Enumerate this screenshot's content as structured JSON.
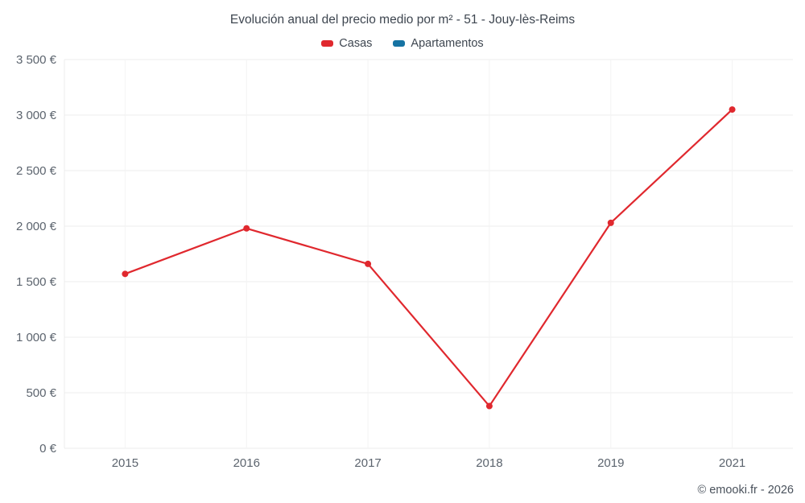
{
  "chart_data": {
    "type": "line",
    "title": "Evolución anual del precio medio por m² - 51 - Jouy-lès-Reims",
    "categories": [
      "2015",
      "2016",
      "2017",
      "2018",
      "2019",
      "2021"
    ],
    "series": [
      {
        "name": "Casas",
        "color": "#e0282e",
        "values": [
          1570,
          1980,
          1660,
          380,
          2030,
          3050
        ]
      },
      {
        "name": "Apartamentos",
        "color": "#1673a3",
        "values": []
      }
    ],
    "xlabel": "",
    "ylabel": "",
    "ylim": [
      0,
      3500
    ],
    "y_ticks": [
      0,
      500,
      1000,
      1500,
      2000,
      2500,
      3000,
      3500
    ],
    "y_tick_labels": [
      "0 €",
      "500 €",
      "1 000 €",
      "1 500 €",
      "2 000 €",
      "2 500 €",
      "3 000 €",
      "3 500 €"
    ],
    "grid": true,
    "legend_position": "top",
    "footer": "© emooki.fr - 2026",
    "colors": {
      "grid_line": "#ececec",
      "axis_text": "#5c646e",
      "title_text": "#3e4650"
    }
  }
}
